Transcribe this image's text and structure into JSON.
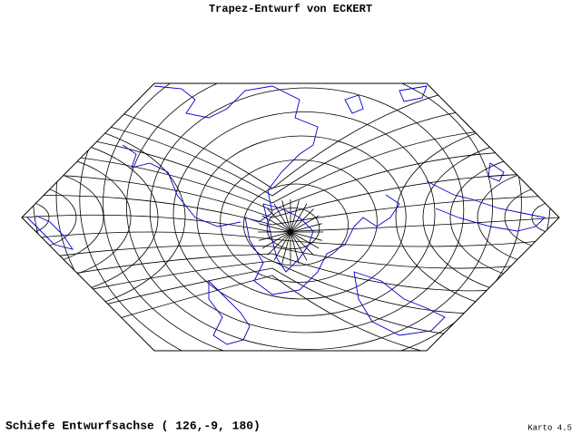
{
  "title": "Trapez-Entwurf von ECKERT",
  "caption": "Schiefe Entwurfsachse ( 126,-9, 180)",
  "credit": "Karto 4.5"
}
